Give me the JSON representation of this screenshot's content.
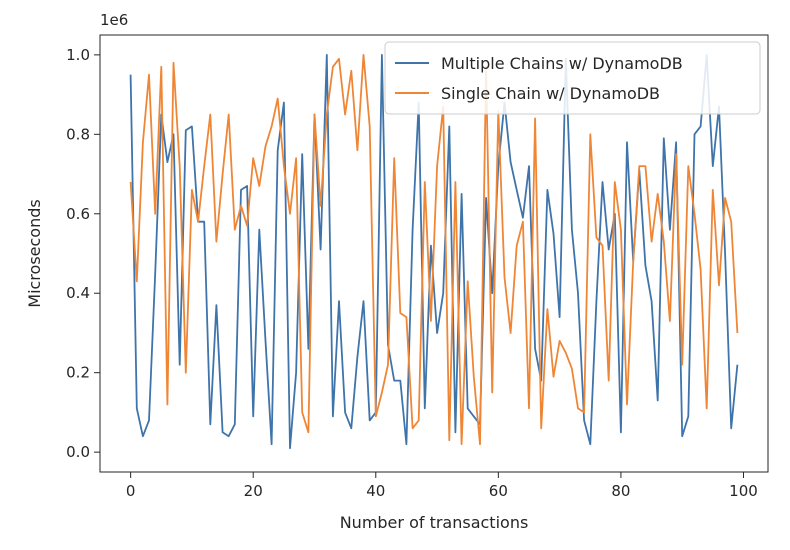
{
  "chart_data": {
    "type": "line",
    "title": "",
    "xlabel": "Number of transactions",
    "ylabel": "Microseconds",
    "y_offset_label": "1e6",
    "xlim": [
      -5,
      104
    ],
    "ylim": [
      -0.05,
      1.05
    ],
    "x_ticks": [
      0,
      20,
      40,
      60,
      80,
      100
    ],
    "x_tick_labels": [
      "0",
      "20",
      "40",
      "60",
      "80",
      "100"
    ],
    "y_ticks": [
      0.0,
      0.2,
      0.4,
      0.6,
      0.8,
      1.0
    ],
    "y_tick_labels": [
      "0.0",
      "0.2",
      "0.4",
      "0.6",
      "0.8",
      "1.0"
    ],
    "grid": false,
    "legend_position": "top-right",
    "x": [
      0,
      1,
      2,
      3,
      4,
      5,
      6,
      7,
      8,
      9,
      10,
      11,
      12,
      13,
      14,
      15,
      16,
      17,
      18,
      19,
      20,
      21,
      22,
      23,
      24,
      25,
      26,
      27,
      28,
      29,
      30,
      31,
      32,
      33,
      34,
      35,
      36,
      37,
      38,
      39,
      40,
      41,
      42,
      43,
      44,
      45,
      46,
      47,
      48,
      49,
      50,
      51,
      52,
      53,
      54,
      55,
      56,
      57,
      58,
      59,
      60,
      61,
      62,
      63,
      64,
      65,
      66,
      67,
      68,
      69,
      70,
      71,
      72,
      73,
      74,
      75,
      76,
      77,
      78,
      79,
      80,
      81,
      82,
      83,
      84,
      85,
      86,
      87,
      88,
      89,
      90,
      91,
      92,
      93,
      94,
      95,
      96,
      97,
      98,
      99
    ],
    "series": [
      {
        "name": "Multiple Chains w/ DynamoDB",
        "color": "#3f74aa",
        "values": [
          0.95,
          0.11,
          0.04,
          0.08,
          0.45,
          0.85,
          0.73,
          0.8,
          0.22,
          0.81,
          0.82,
          0.58,
          0.58,
          0.07,
          0.37,
          0.05,
          0.04,
          0.07,
          0.66,
          0.67,
          0.09,
          0.56,
          0.28,
          0.02,
          0.76,
          0.88,
          0.01,
          0.2,
          0.75,
          0.26,
          0.85,
          0.51,
          1.0,
          0.09,
          0.38,
          0.1,
          0.06,
          0.24,
          0.38,
          0.08,
          0.1,
          1.0,
          0.27,
          0.18,
          0.18,
          0.02,
          0.56,
          0.88,
          0.11,
          0.52,
          0.3,
          0.4,
          0.82,
          0.05,
          0.65,
          0.11,
          0.09,
          0.07,
          0.64,
          0.4,
          0.72,
          0.88,
          0.73,
          0.66,
          0.59,
          0.72,
          0.26,
          0.18,
          0.66,
          0.55,
          0.34,
          0.99,
          0.56,
          0.4,
          0.08,
          0.02,
          0.38,
          0.68,
          0.51,
          0.6,
          0.05,
          0.78,
          0.48,
          0.71,
          0.47,
          0.38,
          0.13,
          0.79,
          0.56,
          0.78,
          0.04,
          0.09,
          0.8,
          0.82,
          1.0,
          0.72,
          0.87,
          0.5,
          0.06,
          0.22
        ]
      },
      {
        "name": "Single Chain w/ DynamoDB",
        "color": "#ef8636",
        "values": [
          0.68,
          0.43,
          0.78,
          0.95,
          0.6,
          0.97,
          0.12,
          0.98,
          0.72,
          0.2,
          0.66,
          0.58,
          0.72,
          0.85,
          0.53,
          0.7,
          0.85,
          0.56,
          0.62,
          0.57,
          0.74,
          0.67,
          0.77,
          0.82,
          0.89,
          0.72,
          0.6,
          0.74,
          0.1,
          0.05,
          0.85,
          0.62,
          0.85,
          0.97,
          0.99,
          0.85,
          0.96,
          0.76,
          1.0,
          0.82,
          0.09,
          0.15,
          0.22,
          0.74,
          0.35,
          0.34,
          0.06,
          0.08,
          0.68,
          0.33,
          0.72,
          0.87,
          0.03,
          0.68,
          0.02,
          0.43,
          0.19,
          0.02,
          0.97,
          0.15,
          0.86,
          0.44,
          0.3,
          0.52,
          0.58,
          0.11,
          0.84,
          0.06,
          0.36,
          0.19,
          0.28,
          0.25,
          0.21,
          0.11,
          0.1,
          0.8,
          0.54,
          0.52,
          0.18,
          0.68,
          0.56,
          0.12,
          0.48,
          0.72,
          0.72,
          0.53,
          0.65,
          0.53,
          0.33,
          0.75,
          0.22,
          0.72,
          0.6,
          0.46,
          0.11,
          0.66,
          0.42,
          0.64,
          0.58,
          0.3
        ]
      }
    ]
  }
}
